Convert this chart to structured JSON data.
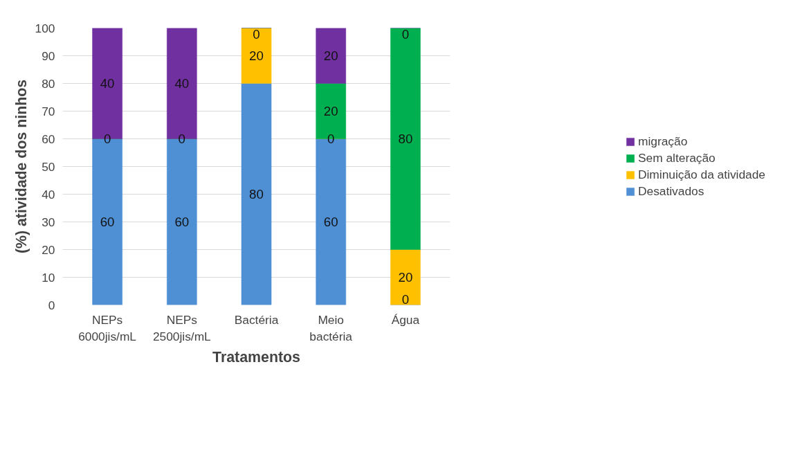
{
  "chart_data": {
    "type": "bar",
    "stacked": true,
    "xlabel": "Tratamentos",
    "ylabel": "(%) atividade dos ninhos",
    "categories": [
      "NEPs\n6000jis/mL",
      "NEPs\n2500jis/mL",
      "Bactéria",
      "Meio\nbactéria",
      "Água"
    ],
    "series": [
      {
        "name": "Desativados",
        "color": "#4f8fd4",
        "values": [
          60,
          60,
          80,
          60,
          0
        ],
        "value_labels": [
          "60",
          "60",
          "80",
          "60",
          "0"
        ]
      },
      {
        "name": "Diminuição da atividade",
        "color": "#ffc000",
        "values": [
          0,
          0,
          20,
          0,
          20
        ],
        "value_labels": [
          "0",
          "0",
          "20",
          "0",
          "20"
        ]
      },
      {
        "name": "Sem alteração",
        "color": "#00b050",
        "values": [
          0,
          0,
          0,
          20,
          80
        ],
        "value_labels": [
          null,
          null,
          null,
          "20",
          "80"
        ]
      },
      {
        "name": "migração",
        "color": "#7030a0",
        "values": [
          40,
          40,
          0,
          20,
          0
        ],
        "value_labels": [
          "40",
          "40",
          "0",
          "20",
          "0"
        ]
      }
    ],
    "ylim": [
      0,
      100
    ],
    "yticks": [
      0,
      10,
      20,
      30,
      40,
      50,
      60,
      70,
      80,
      90,
      100
    ],
    "grid": "y",
    "legend": "right"
  }
}
